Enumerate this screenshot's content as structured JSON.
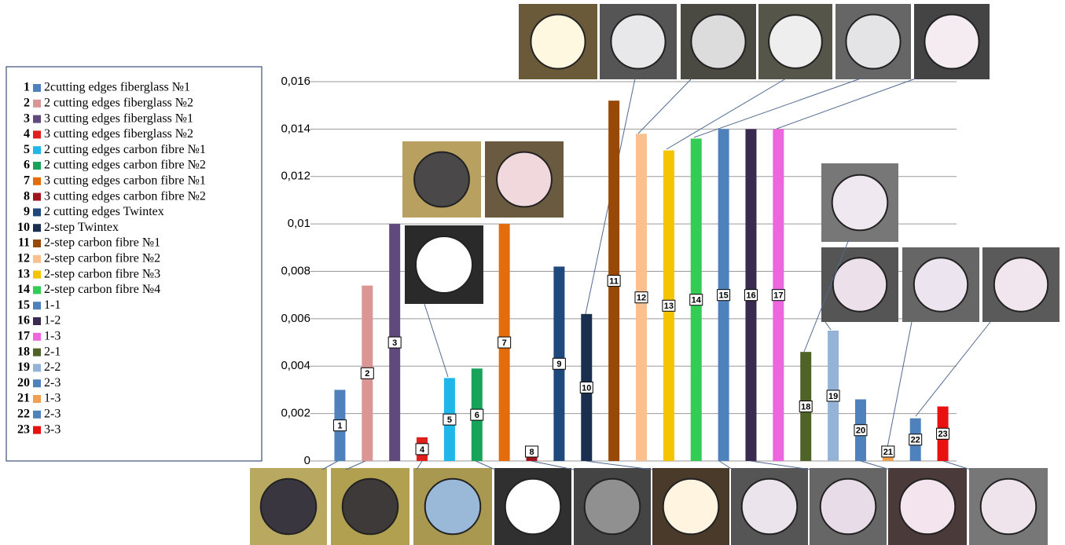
{
  "chart_data": {
    "type": "bar",
    "categories": [
      "1",
      "2",
      "3",
      "4",
      "5",
      "6",
      "7",
      "8",
      "9",
      "10",
      "11",
      "12",
      "13",
      "14",
      "15",
      "16",
      "17",
      "18",
      "19",
      "20",
      "21",
      "22",
      "23"
    ],
    "names": [
      "2cutting edges fiberglass №1",
      "2 cutting edges fiberglass №2",
      "3 cutting edges fiberglass №1",
      "3 cutting edges fiberglass №2",
      "2 cutting edges carbon fibre №1",
      "2 cutting edges carbon fibre №2",
      "3 cutting edges carbon fibre №1",
      "3 cutting edges carbon fibre №2",
      "2 cutting edges Twintex",
      "2-step Twintex",
      "2-step carbon fibre №1",
      "2-step carbon fibre №2",
      "2-step carbon fibre №3",
      "2-step carbon fibre №4",
      "1-1",
      "1-2",
      "1-3",
      "2-1",
      "2-2",
      "2-3",
      "1-3",
      "2-3",
      "3-3"
    ],
    "values": [
      0.003,
      0.0074,
      0.01,
      0.001,
      0.0035,
      0.0039,
      0.01,
      0.0006,
      0.0082,
      0.0062,
      0.0152,
      0.0138,
      0.0131,
      0.0136,
      0.014,
      0.014,
      0.014,
      0.0046,
      0.0055,
      0.0026,
      0.0005,
      0.0018,
      0.0023
    ],
    "colors": [
      "#4f81bd",
      "#d99694",
      "#604a7b",
      "#e0201f",
      "#1fb6e8",
      "#17a35a",
      "#e46c0a",
      "#a0141b",
      "#1f497d",
      "#1a2f4f",
      "#984807",
      "#fac090",
      "#f5c400",
      "#33cc55",
      "#4f81bd",
      "#3b2a4f",
      "#ee66dd",
      "#4f6228",
      "#95b3d7",
      "#4f81bd",
      "#f0a050",
      "#4f81bd",
      "#e81010"
    ],
    "ylim": [
      0,
      0.016
    ],
    "yticks": [
      0,
      {
        "value": 0.002,
        "label": "0,002"
      },
      {
        "value": 0.004,
        "label": "0,004"
      },
      {
        "value": 0.006,
        "label": "0,006"
      },
      {
        "value": 0.008,
        "label": "0,008"
      },
      {
        "value": 0.01,
        "label": "0,01"
      },
      {
        "value": 0.012,
        "label": "0,012"
      },
      {
        "value": 0.014,
        "label": "0,014"
      },
      {
        "value": 0.016,
        "label": "0,016"
      }
    ],
    "grid": true
  }
}
